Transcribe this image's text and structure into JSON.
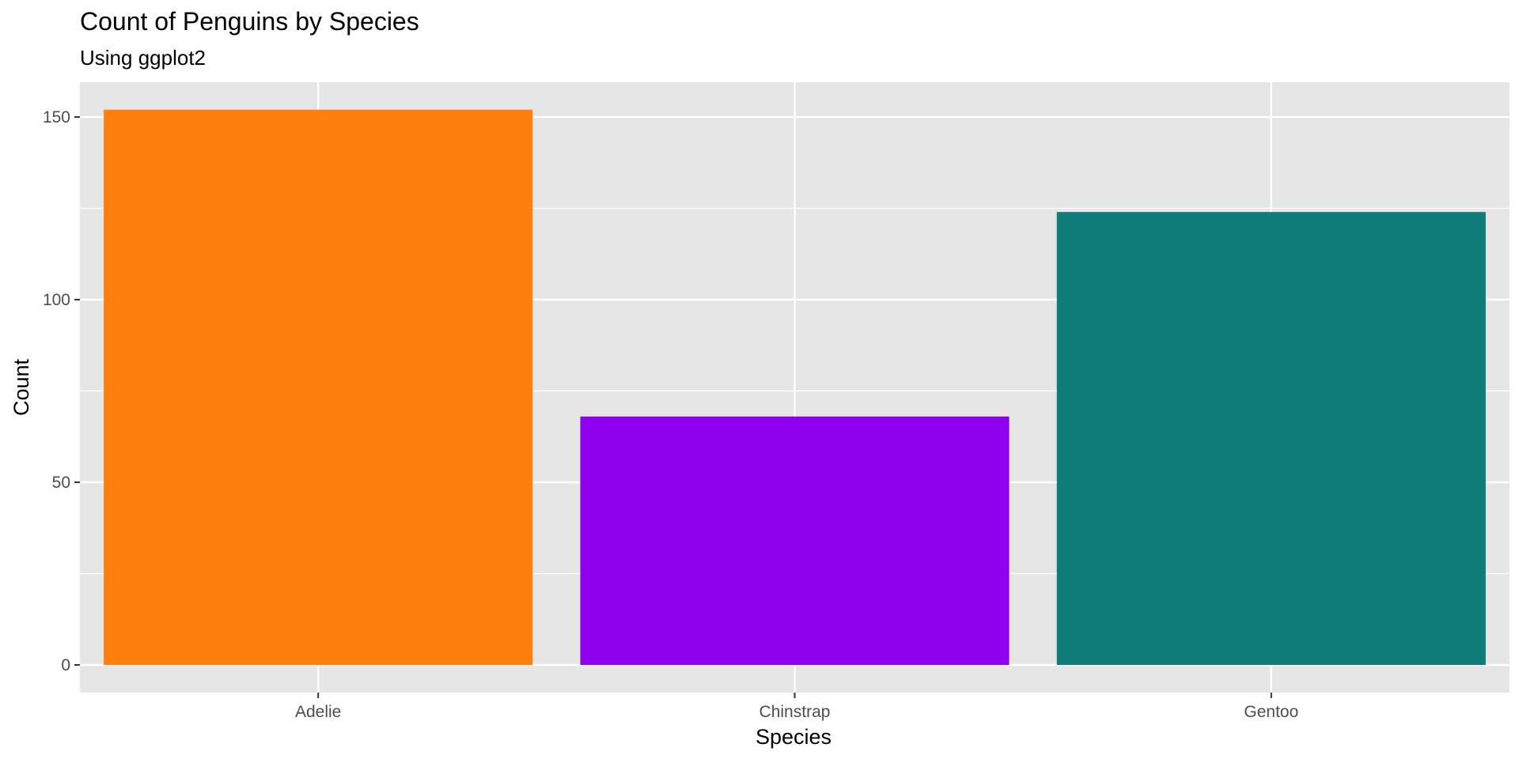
{
  "chart_data": {
    "type": "bar",
    "title": "Count of Penguins by Species",
    "subtitle": "Using ggplot2",
    "xlabel": "Species",
    "ylabel": "Count",
    "categories": [
      "Adelie",
      "Chinstrap",
      "Gentoo"
    ],
    "values": [
      152,
      68,
      124
    ],
    "colors": [
      "#FF7F0E",
      "#8F00EE",
      "#117B79"
    ],
    "ylim": [
      0,
      160
    ],
    "yticks": [
      0,
      50,
      100,
      150
    ],
    "grid": true,
    "legend": "none",
    "panel_background": "#E6E6E6",
    "grid_color": "#FFFFFF"
  }
}
